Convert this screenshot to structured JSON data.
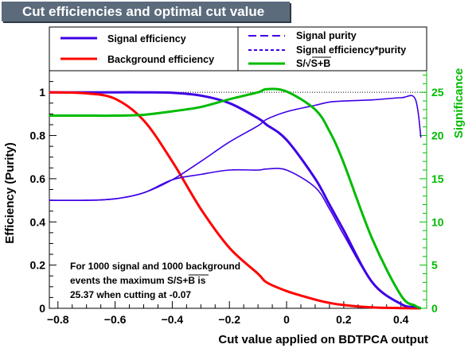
{
  "title": "Cut efficiencies and optimal cut value",
  "legend": {
    "left": [
      "Signal efficiency",
      "Background efficiency"
    ],
    "right": [
      "Signal purity",
      "Signal efficiency*purity",
      "S/√S+B"
    ]
  },
  "annotation": {
    "line1": "For 1000 signal and 1000 background",
    "line2_prefix": "events the maximum S/",
    "line2_sqrt": "S+B",
    "line2_suffix": " is",
    "line3": "25.37 when cutting at -0.07"
  },
  "chart_data": {
    "type": "line",
    "title": "Cut efficiencies and optimal cut value",
    "xlabel": "Cut value applied on BDTPCA output",
    "ylabel": "Efficiency (Purity)",
    "y2label": "Significance",
    "xlim": [
      -0.83,
      0.49
    ],
    "ylim": [
      0,
      1.1
    ],
    "y2lim": [
      0,
      27.5
    ],
    "xticks": [
      -0.8,
      -0.6,
      -0.4,
      -0.2,
      0,
      0.2,
      0.4
    ],
    "xtick_labels": [
      "−0.8",
      "−0.6",
      "−0.4",
      "−0.2",
      "0",
      "0.2",
      "0.4"
    ],
    "yticks": [
      0,
      0.2,
      0.4,
      0.6,
      0.8,
      1
    ],
    "ytick_labels": [
      "0",
      "0.2",
      "0.4",
      "0.6",
      "0.8",
      "1"
    ],
    "y2ticks": [
      0,
      5,
      10,
      15,
      20,
      25
    ],
    "y2tick_labels": [
      "0",
      "5",
      "10",
      "15",
      "20",
      "25"
    ],
    "reference_line_y": 1,
    "legend_position": "top",
    "x": [
      -0.83,
      -0.7,
      -0.6,
      -0.5,
      -0.4,
      -0.3,
      -0.2,
      -0.1,
      -0.07,
      0,
      0.1,
      0.15,
      0.2,
      0.3,
      0.4,
      0.45,
      0.47
    ],
    "series": [
      {
        "name": "Signal efficiency",
        "axis": "left",
        "color": "#3d00e6",
        "style": "solid",
        "values": [
          1,
          1,
          1,
          1,
          0.998,
          0.985,
          0.95,
          0.88,
          0.85,
          0.78,
          0.6,
          0.48,
          0.36,
          0.12,
          0.02,
          0.005,
          0
        ]
      },
      {
        "name": "Background efficiency",
        "axis": "left",
        "color": "#ff0000",
        "style": "solid",
        "values": [
          1,
          0.995,
          0.97,
          0.87,
          0.68,
          0.46,
          0.28,
          0.16,
          0.12,
          0.08,
          0.04,
          0.025,
          0.015,
          0.004,
          0.001,
          0,
          0
        ]
      },
      {
        "name": "Signal purity",
        "axis": "left",
        "color": "#3d00e6",
        "style": "dashed",
        "values": [
          0.5,
          0.5,
          0.507,
          0.535,
          0.595,
          0.68,
          0.77,
          0.845,
          0.875,
          0.91,
          0.94,
          0.955,
          0.96,
          0.965,
          0.975,
          0.97,
          0.79
        ]
      },
      {
        "name": "Signal efficiency*purity",
        "axis": "left",
        "color": "#3d00e6",
        "style": "dotted",
        "values": [
          0.5,
          0.5,
          0.507,
          0.535,
          0.595,
          0.62,
          0.64,
          0.64,
          0.645,
          0.64,
          0.56,
          0.46,
          0.34,
          0.12,
          0.02,
          0.005,
          0
        ]
      },
      {
        "name": "S/√S+B",
        "axis": "right",
        "color": "#00bb00",
        "style": "solid",
        "values": [
          22.3,
          22.3,
          22.3,
          22.4,
          22.8,
          23.3,
          24.2,
          25.0,
          25.37,
          25.1,
          23.0,
          20.5,
          16.8,
          8.0,
          1.5,
          0.3,
          0
        ]
      }
    ]
  }
}
